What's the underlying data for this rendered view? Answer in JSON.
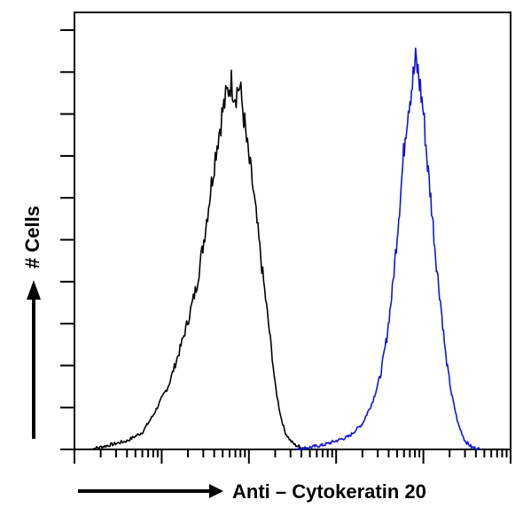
{
  "chart_data": {
    "type": "line",
    "title": "",
    "xlabel": "Anti – Cytokeratin 20",
    "ylabel": "# Cells",
    "x_scale": "log",
    "xlim": [
      1,
      100000
    ],
    "ylim": [
      0,
      100
    ],
    "grid": false,
    "legend": "none",
    "series": [
      {
        "color": "#000000",
        "x": [
          1.5,
          2.5,
          4,
          6,
          8,
          12,
          16,
          20,
          25,
          30,
          35,
          42,
          50,
          56,
          62,
          70,
          78,
          86,
          95,
          110,
          125,
          140,
          160,
          180,
          200,
          230,
          260,
          300,
          340,
          400,
          480
        ],
        "values": [
          0,
          1,
          2,
          4,
          8,
          15,
          23,
          30,
          38,
          48,
          58,
          70,
          79,
          83,
          86,
          83,
          85,
          79,
          71,
          62,
          52,
          43,
          33,
          24,
          15,
          8,
          4,
          2,
          1,
          0.5,
          0
        ]
      },
      {
        "color": "#1414d8",
        "x": [
          350,
          500,
          700,
          1000,
          1400,
          2000,
          2600,
          3200,
          3800,
          4400,
          5000,
          5600,
          6200,
          6800,
          7400,
          8200,
          9000,
          10000,
          11000,
          12500,
          14000,
          16000,
          18000,
          21000,
          25000,
          30000,
          36000,
          45000
        ],
        "values": [
          0,
          0.5,
          1,
          2,
          3,
          6,
          11,
          17,
          26,
          37,
          50,
          62,
          74,
          81,
          85,
          91,
          86,
          79,
          68,
          56,
          44,
          33,
          22,
          13,
          6,
          2,
          0.5,
          0
        ]
      }
    ]
  }
}
